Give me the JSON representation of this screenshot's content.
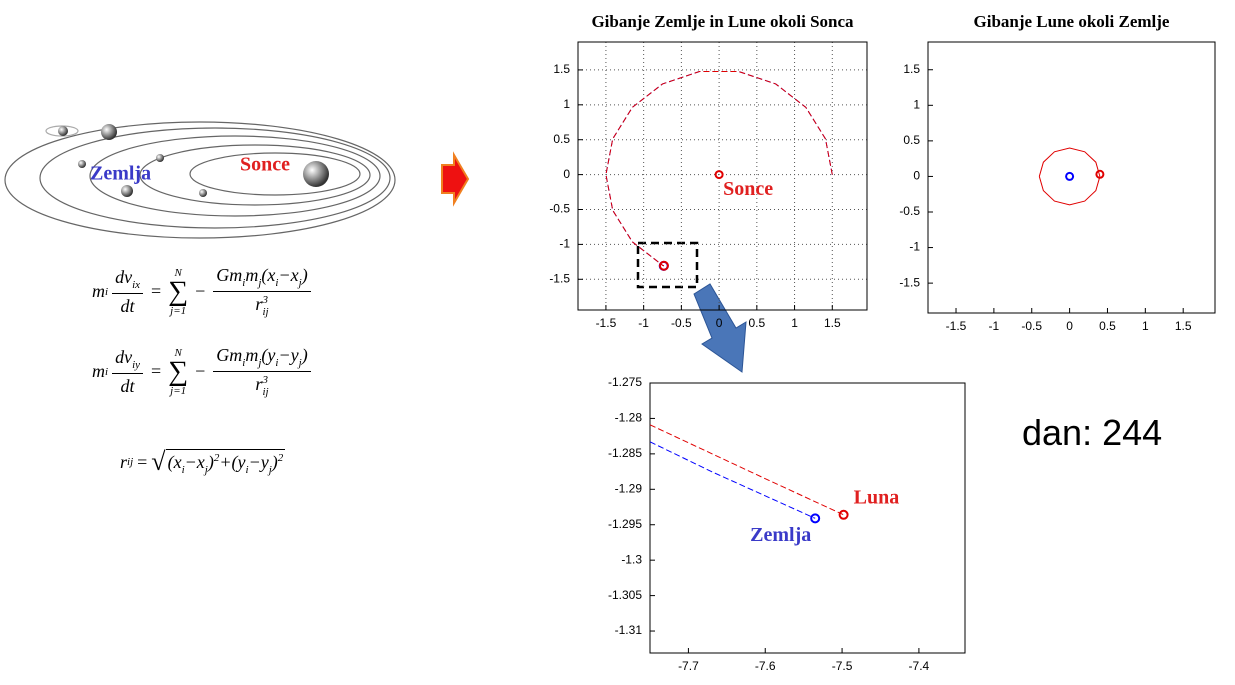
{
  "illustration": {
    "earth_label": "Zemlja",
    "sun_label": "Sonce"
  },
  "equations": [
    {
      "lhs": [
        "m",
        "i"
      ],
      "deriv_num": [
        "dv",
        "ix"
      ],
      "deriv_den": "dt",
      "eq": "=",
      "sum": {
        "top": "N",
        "symbol": "∑",
        "bottom": "j=1"
      },
      "minus": "−",
      "num": [
        "Gm",
        "i",
        "m",
        "j",
        "(",
        "x",
        "i",
        "−",
        "x",
        "j",
        ")"
      ],
      "den": [
        "r",
        "ij",
        "3"
      ]
    },
    {
      "lhs": [
        "m",
        "i"
      ],
      "deriv_num": [
        "dv",
        "iy"
      ],
      "deriv_den": "dt",
      "eq": "=",
      "sum": {
        "top": "N",
        "symbol": "∑",
        "bottom": "j=1"
      },
      "minus": "−",
      "num": [
        "Gm",
        "i",
        "m",
        "j",
        "(",
        "y",
        "i",
        "−",
        "y",
        "j",
        ")"
      ],
      "den": [
        "r",
        "ij",
        "3"
      ]
    }
  ],
  "distance_equation": {
    "lhs": [
      "r",
      "ij"
    ],
    "eq": "=",
    "radicand": [
      "(",
      "x",
      "i",
      "−",
      "x",
      "j",
      ")",
      "2",
      "+",
      "(",
      "y",
      "i",
      "−",
      "y",
      "j",
      ")",
      "2"
    ]
  },
  "counter": {
    "label": "dan:",
    "value": 244
  },
  "chart_data": [
    {
      "type": "line",
      "title": "Gibanje Zemlje in Lune okoli Sonca",
      "grid": true,
      "xlim": [
        -1.87,
        1.96
      ],
      "ylim": [
        -1.94,
        1.9
      ],
      "xticks": [
        -1.5,
        -1,
        -0.5,
        0,
        0.5,
        1,
        1.5
      ],
      "yticks": [
        -1.5,
        -1,
        -0.5,
        0,
        0.5,
        1,
        1.5
      ],
      "series": [
        {
          "color": "#0000ff",
          "linestyle": "dashed",
          "x": [
            1.5,
            1.4095,
            1.1491,
            0.75,
            0.2605,
            -0.2605,
            -0.75,
            -1.1491,
            -1.4095,
            -1.5,
            -1.4095,
            -1.1491,
            -0.75,
            -0.734
          ],
          "y": [
            0,
            0.513,
            0.9642,
            1.299,
            1.4772,
            1.4772,
            1.299,
            0.9642,
            0.513,
            0,
            -0.513,
            -0.9642,
            -1.299,
            -1.308
          ]
        },
        {
          "color": "#e00000",
          "linestyle": "dashed",
          "x": [
            1.5,
            1.4095,
            1.1491,
            0.75,
            0.2605,
            -0.2605,
            -0.75,
            -1.1491,
            -1.4095,
            -1.5,
            -1.4095,
            -1.1491,
            -0.75,
            -0.731
          ],
          "y": [
            0,
            0.513,
            0.9642,
            1.299,
            1.4772,
            1.4772,
            1.299,
            0.9642,
            0.513,
            0,
            -0.513,
            -0.9642,
            -1.299,
            -1.306
          ]
        }
      ],
      "points": [
        {
          "name": "Sonce",
          "color": "#e00000",
          "x": 0,
          "y": 0
        }
      ]
    },
    {
      "type": "line",
      "title": "Gibanje Lune okoli Zemlje",
      "grid": false,
      "xlim": [
        -1.87,
        1.92
      ],
      "ylim": [
        -1.92,
        1.89
      ],
      "xticks": [
        -1.5,
        -1,
        -0.5,
        0,
        0.5,
        1,
        1.5
      ],
      "yticks": [
        -1.5,
        -1,
        -0.5,
        0,
        0.5,
        1,
        1.5
      ],
      "series": [
        {
          "color": "#e00000",
          "linestyle": "solid",
          "x": [
            -0.4,
            -0.3464,
            -0.2,
            0,
            0.2,
            0.3464,
            0.4
          ],
          "y": [
            0,
            0.2,
            0.3464,
            0.4,
            0.3464,
            0.2,
            0
          ]
        },
        {
          "color": "#e00000",
          "linestyle": "solid",
          "x": [
            0.4,
            0.3464,
            0.2,
            0,
            -0.2,
            -0.3464,
            -0.4
          ],
          "y": [
            0,
            -0.2,
            -0.3464,
            -0.4,
            -0.3464,
            -0.2,
            0
          ]
        }
      ],
      "points": [
        {
          "color": "#0000ff",
          "x": 0,
          "y": 0
        },
        {
          "color": "#e00000",
          "x": 0.4,
          "y": 0.03
        }
      ]
    },
    {
      "type": "line",
      "grid": false,
      "xlim": [
        -7.75,
        -7.34
      ],
      "ylim": [
        -1.3131,
        -1.275
      ],
      "xticks": [
        -7.7,
        -7.6,
        -7.5,
        -7.4
      ],
      "yticks": [
        -1.275,
        -1.28,
        -1.285,
        -1.29,
        -1.295,
        -1.3,
        -1.305,
        -1.31
      ],
      "series": [
        {
          "name": "Zemlja",
          "color": "#0000ff",
          "linestyle": "dashed",
          "x": [
            -7.75,
            -7.67,
            -7.535
          ],
          "y": [
            -1.2833,
            -1.2875,
            -1.2941
          ]
        },
        {
          "name": "Luna",
          "color": "#e00000",
          "linestyle": "dashed",
          "x": [
            -7.75,
            -7.6,
            -7.498
          ],
          "y": [
            -1.2809,
            -1.2885,
            -1.2936
          ]
        }
      ]
    }
  ]
}
